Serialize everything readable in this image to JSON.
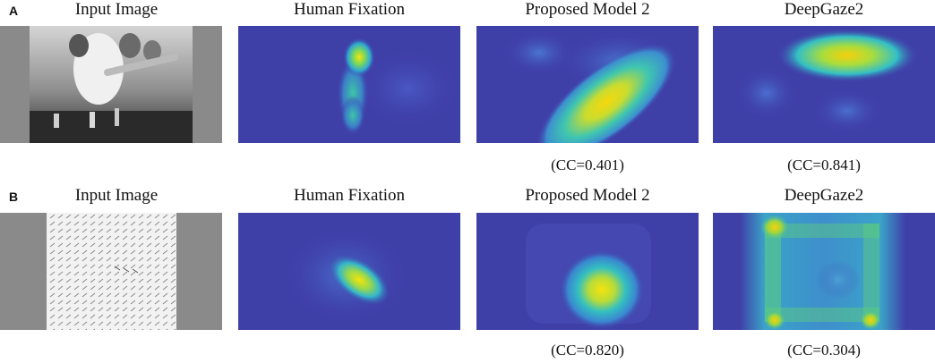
{
  "figure": {
    "rows": [
      {
        "label": "A",
        "titles": [
          "Input Image",
          "Human Fixation",
          "Proposed Model 2",
          "DeepGaze2"
        ],
        "cc": [
          "",
          "",
          "(CC=0.401)",
          "(CC=0.841)"
        ]
      },
      {
        "label": "B",
        "titles": [
          "Input Image",
          "Human Fixation",
          "Proposed Model 2",
          "DeepGaze2"
        ],
        "cc": [
          "",
          "",
          "(CC=0.820)",
          "(CC=0.304)"
        ]
      }
    ]
  },
  "colors": {
    "heat_background": "#3f3fa8",
    "heat_cyan": "#33c3c9",
    "heat_yellow": "#f6e30c",
    "photo_border": "#8a8a8a",
    "search_background": "#f2f2f2"
  },
  "icons": [
    "photo-thumbnail",
    "heatmap",
    "visual-search-stimulus"
  ]
}
